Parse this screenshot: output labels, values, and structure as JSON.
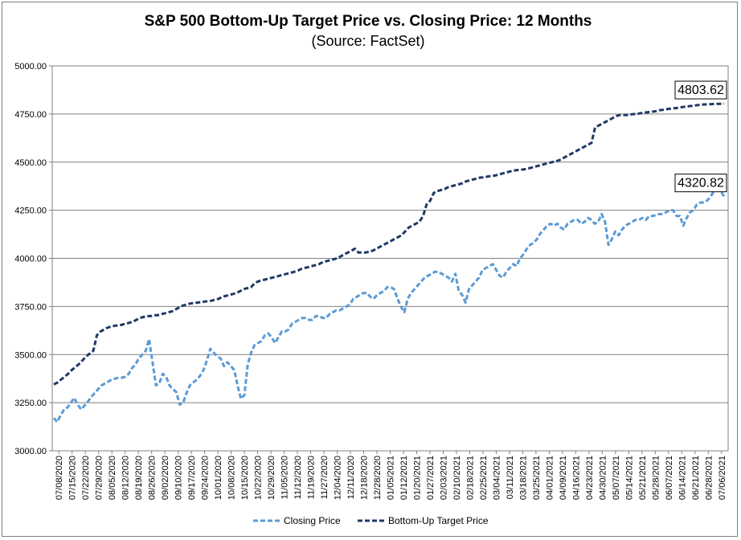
{
  "chart_data": {
    "type": "line",
    "title": "S&P 500 Bottom-Up Target Price vs. Closing Price: 12 Months",
    "subtitle": "(Source: FactSet)",
    "xlabel": "",
    "ylabel": "",
    "ylim": [
      3000,
      5000
    ],
    "yticks": [
      "3000.00",
      "3250.00",
      "3500.00",
      "3750.00",
      "4000.00",
      "4250.00",
      "4500.00",
      "4750.00",
      "5000.00"
    ],
    "grid": true,
    "legend_position": "bottom",
    "x_tick_labels": [
      "07/08/2020",
      "07/15/2020",
      "07/22/2020",
      "07/29/2020",
      "08/05/2020",
      "08/12/2020",
      "08/19/2020",
      "08/26/2020",
      "09/02/2020",
      "09/10/2020",
      "09/17/2020",
      "09/24/2020",
      "10/01/2020",
      "10/08/2020",
      "10/15/2020",
      "10/22/2020",
      "10/29/2020",
      "11/05/2020",
      "11/12/2020",
      "11/19/2020",
      "11/27/2020",
      "12/04/2020",
      "12/11/2020",
      "12/18/2020",
      "12/28/2020",
      "01/05/2021",
      "01/12/2021",
      "01/20/2021",
      "01/27/2021",
      "02/03/2021",
      "02/10/2021",
      "02/18/2021",
      "02/25/2021",
      "03/04/2021",
      "03/11/2021",
      "03/18/2021",
      "03/25/2021",
      "04/01/2021",
      "04/09/2021",
      "04/16/2021",
      "04/23/2021",
      "04/30/2021",
      "05/07/2021",
      "05/14/2021",
      "05/21/2021",
      "05/28/2021",
      "06/07/2021",
      "06/14/2021",
      "06/21/2021",
      "06/28/2021",
      "07/06/2021"
    ],
    "series": [
      {
        "name": "Closing Price",
        "color": "#5b9bd5",
        "style": "dashed",
        "values": [
          3170,
          3150,
          3185,
          3215,
          3225,
          3250,
          3275,
          3240,
          3215,
          3235,
          3255,
          3280,
          3300,
          3320,
          3340,
          3350,
          3360,
          3370,
          3375,
          3380,
          3380,
          3385,
          3400,
          3430,
          3450,
          3480,
          3500,
          3520,
          3580,
          3460,
          3340,
          3350,
          3400,
          3385,
          3340,
          3320,
          3305,
          3240,
          3250,
          3300,
          3340,
          3355,
          3370,
          3390,
          3420,
          3470,
          3530,
          3510,
          3490,
          3480,
          3440,
          3460,
          3440,
          3420,
          3340,
          3270,
          3290,
          3450,
          3510,
          3550,
          3560,
          3570,
          3600,
          3610,
          3590,
          3560,
          3590,
          3620,
          3620,
          3630,
          3660,
          3670,
          3680,
          3690,
          3690,
          3680,
          3680,
          3700,
          3700,
          3690,
          3690,
          3710,
          3720,
          3730,
          3730,
          3740,
          3750,
          3760,
          3790,
          3800,
          3810,
          3820,
          3820,
          3800,
          3790,
          3810,
          3820,
          3830,
          3850,
          3850,
          3840,
          3790,
          3750,
          3720,
          3790,
          3820,
          3840,
          3860,
          3880,
          3900,
          3910,
          3920,
          3930,
          3930,
          3920,
          3910,
          3900,
          3880,
          3920,
          3830,
          3810,
          3770,
          3840,
          3860,
          3880,
          3900,
          3940,
          3950,
          3960,
          3970,
          3940,
          3910,
          3900,
          3930,
          3950,
          3970,
          3960,
          4000,
          4020,
          4050,
          4070,
          4080,
          4100,
          4130,
          4150,
          4170,
          4180,
          4170,
          4180,
          4160,
          4150,
          4180,
          4190,
          4200,
          4200,
          4180,
          4190,
          4210,
          4200,
          4180,
          4190,
          4230,
          4190,
          4070,
          4100,
          4140,
          4120,
          4150,
          4170,
          4180,
          4190,
          4200,
          4200,
          4210,
          4200,
          4220,
          4220,
          4225,
          4230,
          4230,
          4240,
          4250,
          4250,
          4220,
          4220,
          4170,
          4210,
          4240,
          4250,
          4280,
          4290,
          4290,
          4300,
          4320,
          4350,
          4355,
          4350,
          4320.82
        ]
      },
      {
        "name": "Bottom-Up Target Price",
        "color": "#203864",
        "style": "dashed",
        "values": [
          3345,
          3355,
          3370,
          3385,
          3400,
          3420,
          3435,
          3450,
          3470,
          3490,
          3505,
          3520,
          3600,
          3620,
          3630,
          3640,
          3645,
          3650,
          3650,
          3655,
          3660,
          3665,
          3670,
          3680,
          3690,
          3695,
          3700,
          3700,
          3705,
          3705,
          3710,
          3715,
          3720,
          3725,
          3735,
          3745,
          3755,
          3760,
          3765,
          3768,
          3770,
          3772,
          3775,
          3778,
          3780,
          3785,
          3790,
          3800,
          3805,
          3810,
          3815,
          3820,
          3830,
          3840,
          3845,
          3850,
          3870,
          3880,
          3885,
          3890,
          3895,
          3900,
          3905,
          3910,
          3915,
          3920,
          3925,
          3930,
          3935,
          3945,
          3950,
          3955,
          3960,
          3965,
          3970,
          3980,
          3985,
          3990,
          3995,
          4000,
          4010,
          4020,
          4030,
          4040,
          4050,
          4030,
          4030,
          4030,
          4035,
          4040,
          4050,
          4060,
          4070,
          4080,
          4090,
          4100,
          4110,
          4120,
          4140,
          4160,
          4170,
          4180,
          4190,
          4220,
          4280,
          4300,
          4340,
          4350,
          4355,
          4360,
          4370,
          4375,
          4380,
          4385,
          4390,
          4400,
          4405,
          4410,
          4415,
          4420,
          4420,
          4425,
          4428,
          4430,
          4435,
          4440,
          4445,
          4450,
          4455,
          4458,
          4460,
          4462,
          4465,
          4470,
          4475,
          4480,
          4485,
          4490,
          4495,
          4500,
          4505,
          4510,
          4520,
          4530,
          4540,
          4550,
          4560,
          4570,
          4580,
          4590,
          4600,
          4680,
          4690,
          4700,
          4710,
          4720,
          4730,
          4740,
          4745,
          4745,
          4745,
          4748,
          4750,
          4752,
          4755,
          4758,
          4760,
          4762,
          4765,
          4770,
          4772,
          4775,
          4778,
          4780,
          4782,
          4785,
          4788,
          4790,
          4792,
          4795,
          4797,
          4799,
          4800,
          4801,
          4802,
          4803,
          4803,
          4803.62
        ]
      }
    ],
    "callouts": [
      {
        "label": "4803.62",
        "series": 1
      },
      {
        "label": "4320.82",
        "series": 0
      }
    ]
  }
}
